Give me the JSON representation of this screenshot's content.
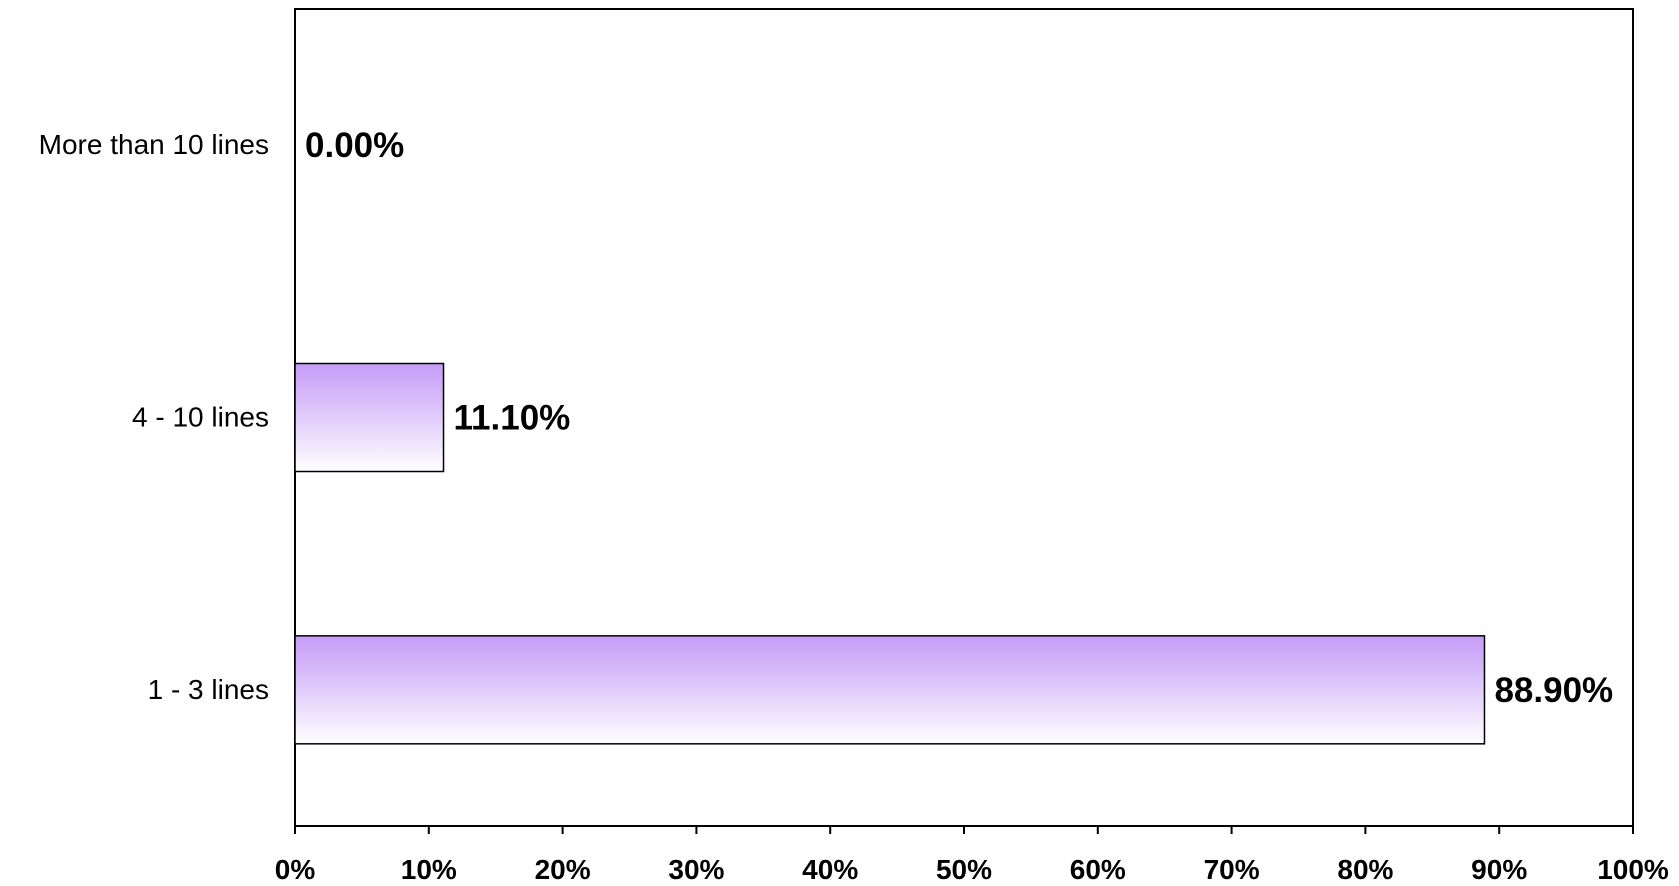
{
  "chart_data": {
    "type": "bar",
    "orientation": "horizontal",
    "categories": [
      "1 - 3 lines",
      "4 - 10 lines",
      "More than 10 lines"
    ],
    "values": [
      88.9,
      11.1,
      0.0
    ],
    "data_labels": [
      "88.90%",
      "11.10%",
      "0.00%"
    ],
    "title": "",
    "xlabel": "",
    "ylabel": "",
    "xlim": [
      0,
      100
    ],
    "x_ticks": [
      0,
      10,
      20,
      30,
      40,
      50,
      60,
      70,
      80,
      90,
      100
    ],
    "x_tick_labels": [
      "0%",
      "10%",
      "20%",
      "30%",
      "40%",
      "50%",
      "60%",
      "70%",
      "80%",
      "90%",
      "100%"
    ],
    "grid": false,
    "legend": "none",
    "colors": {
      "bar_top": "#c59cf7",
      "bar_bottom": "#ffffff",
      "bar_stroke": "#000000",
      "axis": "#000000"
    }
  }
}
